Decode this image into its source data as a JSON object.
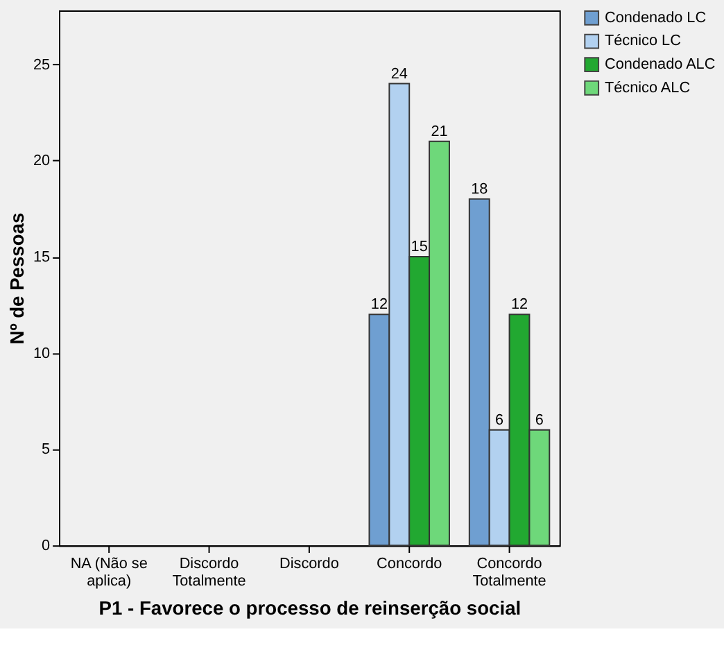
{
  "chart_data": {
    "type": "bar",
    "xlabel": "P1 - Favorece o processo de reinserção social",
    "ylabel": "Nº de Pessoas",
    "categories": [
      "NA (Não se\naplica)",
      "Discordo\nTotalmente",
      "Discordo",
      "Concordo",
      "Concordo\nTotalmente"
    ],
    "series": [
      {
        "name": "Condenado LC",
        "color": "#6f9fd1",
        "values": [
          null,
          null,
          null,
          12,
          18
        ]
      },
      {
        "name": "Técnico LC",
        "color": "#b2d1f0",
        "values": [
          null,
          null,
          null,
          24,
          6
        ]
      },
      {
        "name": "Condenado ALC",
        "color": "#22a831",
        "values": [
          null,
          null,
          null,
          15,
          12
        ]
      },
      {
        "name": "Técnico ALC",
        "color": "#6ed87a",
        "values": [
          null,
          null,
          null,
          21,
          6
        ]
      }
    ],
    "ylim": [
      0,
      27.8
    ],
    "yticks": [
      0,
      5,
      10,
      15,
      20,
      25
    ],
    "data_labels": true,
    "legend": "top right",
    "grid": false
  }
}
